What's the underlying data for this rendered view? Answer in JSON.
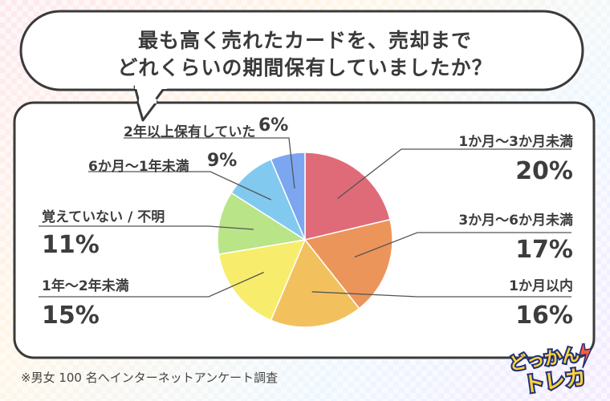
{
  "question": {
    "line1": "最も高く売れたカードを、売却まで",
    "line2": "どれくらいの期間保有していましたか？"
  },
  "footnote": "※男女 100 名へインターネットアンケート調査",
  "logo": {
    "line1": "どっかん",
    "line2": "トレカ",
    "colors": {
      "fill": "#ffd23a",
      "stroke": "#1f2f7a",
      "accent": "#ff5a3c"
    }
  },
  "chart_data": {
    "type": "pie",
    "title": "最も高く売れたカードを、売却までどれくらいの期間保有していましたか？",
    "start": "12 o'clock",
    "direction": "clockwise",
    "slices": [
      {
        "label": "1か月～3か月未満",
        "value": 20,
        "display": "20%",
        "color": "#e06b78"
      },
      {
        "label": "3か月～6か月未満",
        "value": 17,
        "display": "17%",
        "color": "#ec955a"
      },
      {
        "label": "1か月以内",
        "value": 16,
        "display": "16%",
        "color": "#f2c15e"
      },
      {
        "label": "1年～2年未満",
        "value": 15,
        "display": "15%",
        "color": "#f8ec6c"
      },
      {
        "label": "覚えていない / 不明",
        "value": 11,
        "display": "11%",
        "color": "#b9e487"
      },
      {
        "label": "6か月～1年未満",
        "value": 9,
        "display": "9%",
        "color": "#82c9f0"
      },
      {
        "label": "2年以上保有していた",
        "value": 6,
        "display": "6%",
        "color": "#7da6f0"
      }
    ]
  }
}
